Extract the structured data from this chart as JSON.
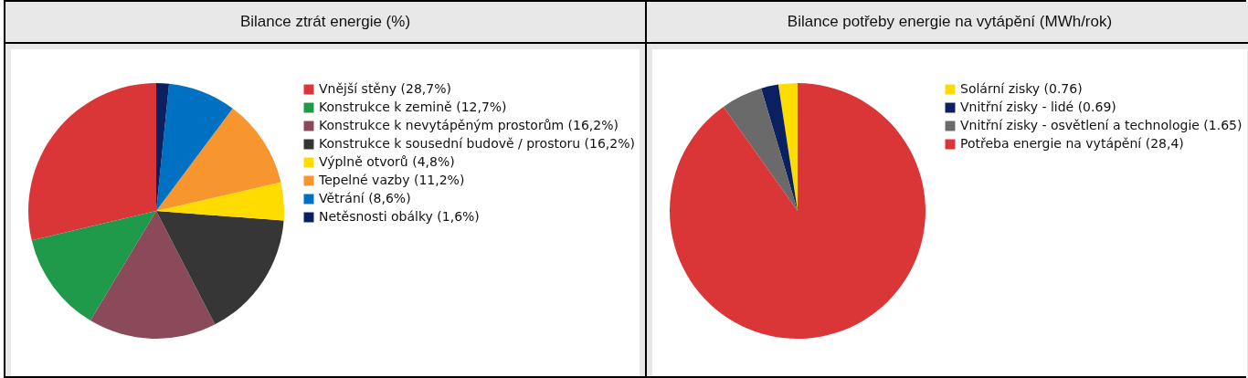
{
  "chart_data": [
    {
      "type": "pie",
      "title": "Bilance ztrát energie (%)",
      "categories": [
        "Vnější stěny (28,7%)",
        "Konstrukce k zemině (12,7%)",
        "Konstrukce k nevytápěným prostorům (16,2%)",
        "Konstrukce k sousední budově / prostoru (16,2%)",
        "Výplně otvorů (4,8%)",
        "Tepelné vazby (11,2%)",
        "Větrání (8,6%)",
        "Netěsnosti obálky (1,6%)"
      ],
      "values": [
        28.7,
        12.7,
        16.2,
        16.2,
        4.8,
        11.2,
        8.6,
        1.6
      ],
      "colors": [
        "#da3637",
        "#1f9a4a",
        "#8a4a5a",
        "#363636",
        "#ffdc00",
        "#f7962f",
        "#0070c2",
        "#0a2060"
      ],
      "legend": "right"
    },
    {
      "type": "pie",
      "title": "Bilance potřeby energie na vytápění (MWh/rok)",
      "categories": [
        "Solární zisky (0.76)",
        "Vnitřní zisky - lidé (0.69)",
        "Vnitřní zisky - osvětlení a technologie (1.65)",
        "Potřeba energie na vytápění (28,4)"
      ],
      "values": [
        0.76,
        0.69,
        1.65,
        28.4
      ],
      "colors": [
        "#ffdc00",
        "#0a2060",
        "#6a6a6a",
        "#da3637"
      ],
      "legend": "right"
    }
  ]
}
